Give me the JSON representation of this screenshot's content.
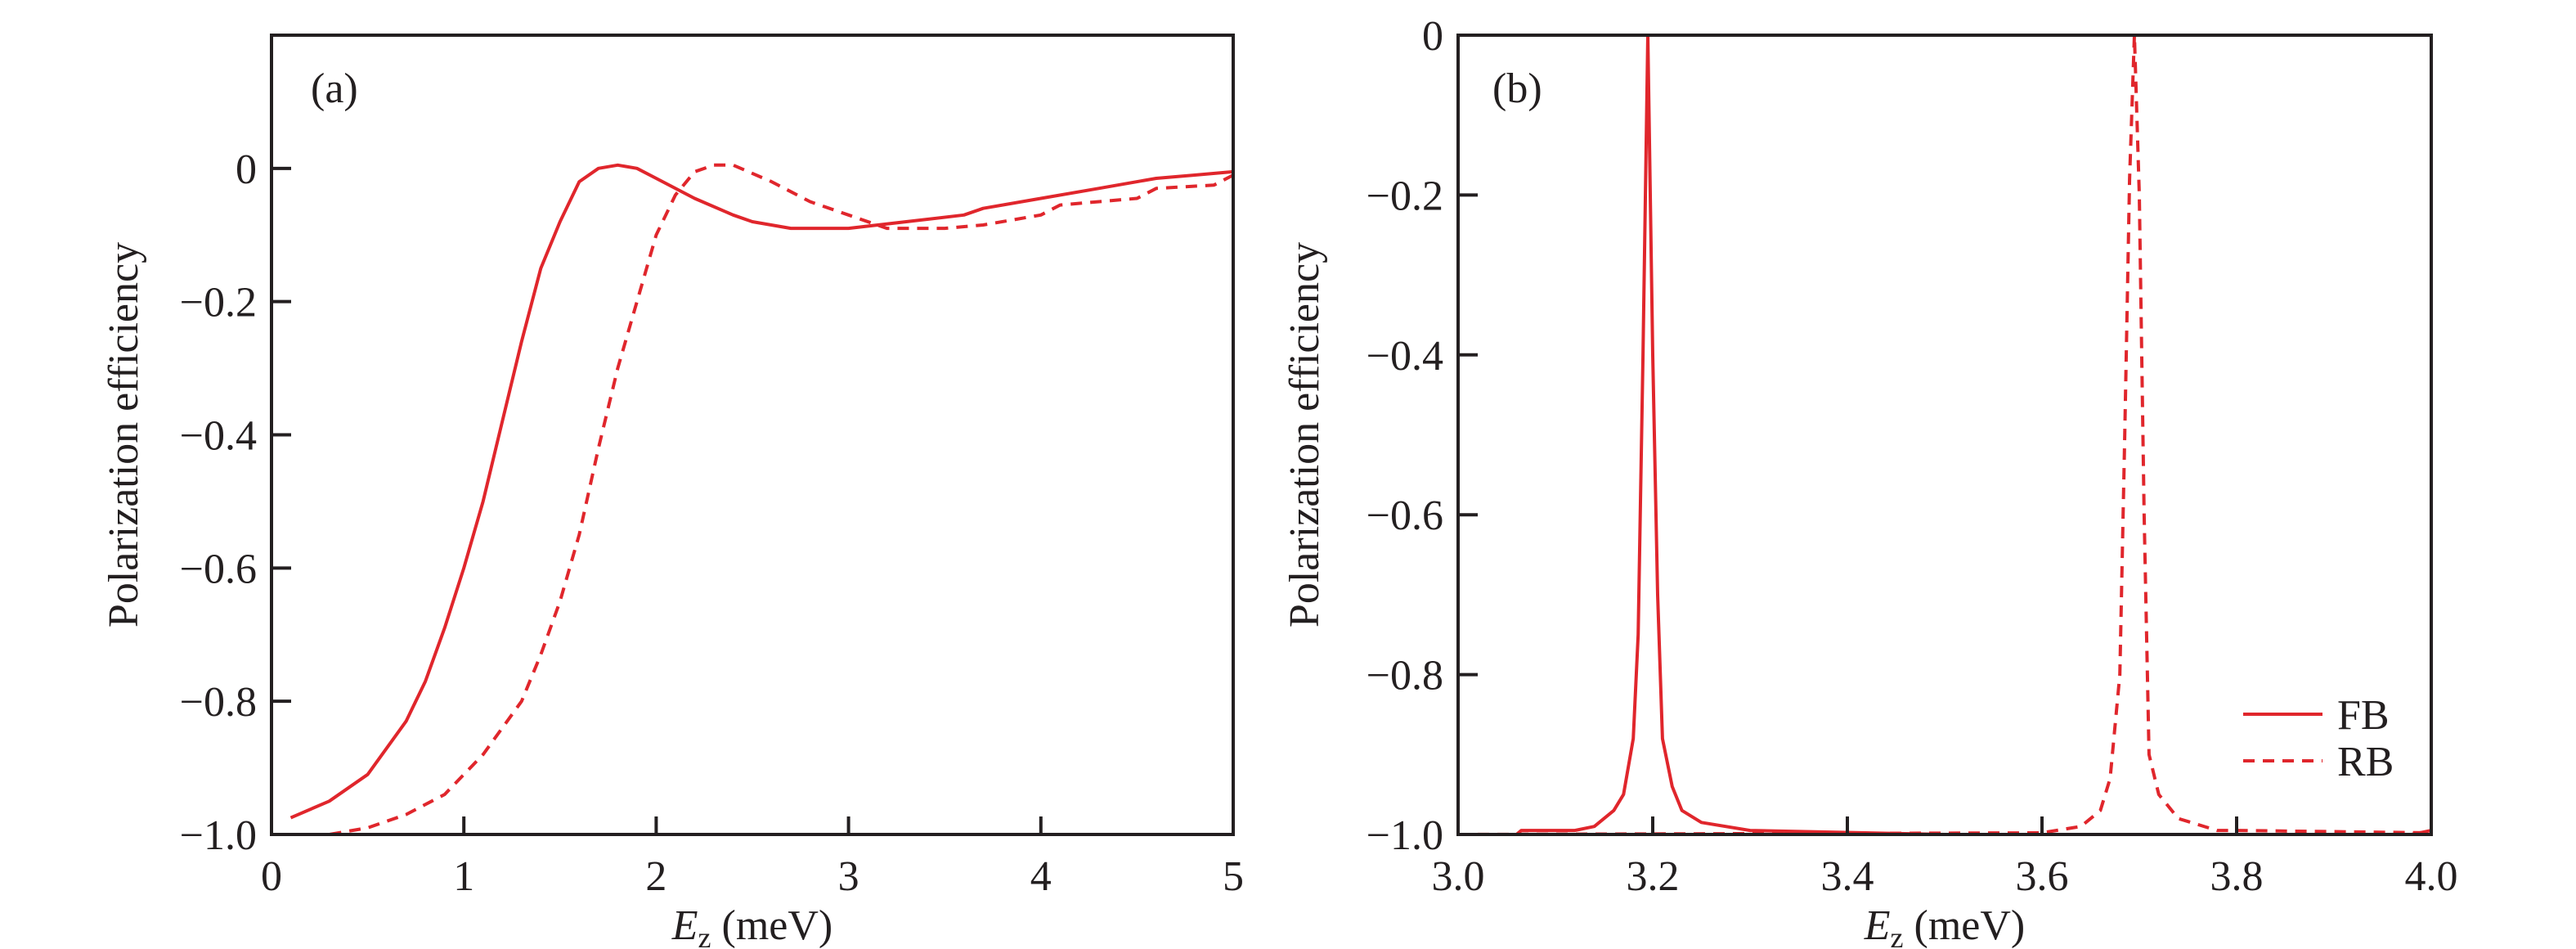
{
  "colors": {
    "series": "#e0262c",
    "axis": "#231f20"
  },
  "chart_data": [
    {
      "type": "line",
      "panel_label": "(a)",
      "xlabel": {
        "var": "E",
        "sub": "z",
        "unit": " (meV)"
      },
      "ylabel": "Polarization efficiency",
      "xlim": [
        0,
        5
      ],
      "ylim": [
        -1.0,
        0.2
      ],
      "xticks": [
        0,
        1,
        2,
        3,
        4,
        5
      ],
      "xtick_labels": [
        "0",
        "1",
        "2",
        "3",
        "4",
        "5"
      ],
      "yticks": [
        0,
        -0.2,
        -0.4,
        -0.6,
        -0.8,
        -1.0
      ],
      "ytick_labels": [
        "0",
        "−0.2",
        "−0.4",
        "−0.6",
        "−0.8",
        "−1.0"
      ],
      "grid": false,
      "series": [
        {
          "style": "solid",
          "x": [
            0.1,
            0.3,
            0.5,
            0.7,
            0.8,
            0.9,
            1.0,
            1.1,
            1.2,
            1.3,
            1.4,
            1.5,
            1.6,
            1.7,
            1.8,
            1.9,
            2.0,
            2.2,
            2.4,
            2.5,
            2.7,
            3.0,
            3.3,
            3.6,
            3.7,
            4.0,
            4.3,
            4.6,
            4.8,
            5.0
          ],
          "y": [
            -0.975,
            -0.95,
            -0.91,
            -0.83,
            -0.77,
            -0.69,
            -0.6,
            -0.5,
            -0.38,
            -0.26,
            -0.15,
            -0.08,
            -0.02,
            0.0,
            0.005,
            0.0,
            -0.015,
            -0.045,
            -0.07,
            -0.08,
            -0.09,
            -0.09,
            -0.08,
            -0.07,
            -0.06,
            -0.045,
            -0.03,
            -0.015,
            -0.01,
            -0.005
          ]
        },
        {
          "style": "dashed",
          "x": [
            0.1,
            0.3,
            0.5,
            0.7,
            0.9,
            1.1,
            1.3,
            1.4,
            1.5,
            1.6,
            1.7,
            1.8,
            1.9,
            2.0,
            2.1,
            2.2,
            2.3,
            2.4,
            2.6,
            2.8,
            3.0,
            3.2,
            3.5,
            3.7,
            4.0,
            4.1,
            4.5,
            4.6,
            4.9,
            5.0
          ],
          "y": [
            -1.0,
            -1.0,
            -0.99,
            -0.97,
            -0.94,
            -0.88,
            -0.8,
            -0.73,
            -0.65,
            -0.55,
            -0.42,
            -0.3,
            -0.2,
            -0.1,
            -0.04,
            -0.005,
            0.005,
            0.005,
            -0.02,
            -0.05,
            -0.07,
            -0.09,
            -0.09,
            -0.085,
            -0.07,
            -0.055,
            -0.045,
            -0.03,
            -0.025,
            -0.01
          ]
        }
      ]
    },
    {
      "type": "line",
      "panel_label": "(b)",
      "xlabel": {
        "var": "E",
        "sub": "z",
        "unit": " (meV)"
      },
      "ylabel": "Polarization efficiency",
      "xlim": [
        3.0,
        4.0
      ],
      "ylim": [
        -1.0,
        0
      ],
      "xticks": [
        3.0,
        3.2,
        3.4,
        3.6,
        3.8,
        4.0
      ],
      "xtick_labels": [
        "3.0",
        "3.2",
        "3.4",
        "3.6",
        "3.8",
        "4.0"
      ],
      "yticks": [
        0,
        -0.2,
        -0.4,
        -0.6,
        -0.8,
        -1.0
      ],
      "ytick_labels": [
        "0",
        "−0.2",
        "−0.4",
        "−0.6",
        "−0.8",
        "−1.0"
      ],
      "grid": false,
      "legend": {
        "placement": "bottom-right",
        "entries": [
          "FB",
          "RB"
        ]
      },
      "series": [
        {
          "name": "FB",
          "style": "solid",
          "x": [
            3.0,
            3.06,
            3.065,
            3.12,
            3.14,
            3.16,
            3.17,
            3.18,
            3.185,
            3.19,
            3.195,
            3.2,
            3.205,
            3.21,
            3.22,
            3.23,
            3.25,
            3.3,
            3.5,
            3.98,
            4.0
          ],
          "y": [
            -1.0,
            -1.0,
            -0.995,
            -0.995,
            -0.99,
            -0.97,
            -0.95,
            -0.88,
            -0.75,
            -0.4,
            0.0,
            -0.4,
            -0.7,
            -0.88,
            -0.94,
            -0.97,
            -0.985,
            -0.995,
            -1.0,
            -1.0,
            -0.995
          ]
        },
        {
          "name": "RB",
          "style": "dashed",
          "x": [
            3.0,
            3.6,
            3.64,
            3.66,
            3.67,
            3.68,
            3.685,
            3.69,
            3.695,
            3.7,
            3.705,
            3.71,
            3.72,
            3.74,
            3.78,
            3.8,
            4.0
          ],
          "y": [
            -1.0,
            -0.998,
            -0.99,
            -0.97,
            -0.93,
            -0.8,
            -0.5,
            -0.18,
            0.0,
            -0.2,
            -0.6,
            -0.9,
            -0.95,
            -0.98,
            -0.995,
            -0.995,
            -0.998
          ]
        }
      ]
    }
  ]
}
